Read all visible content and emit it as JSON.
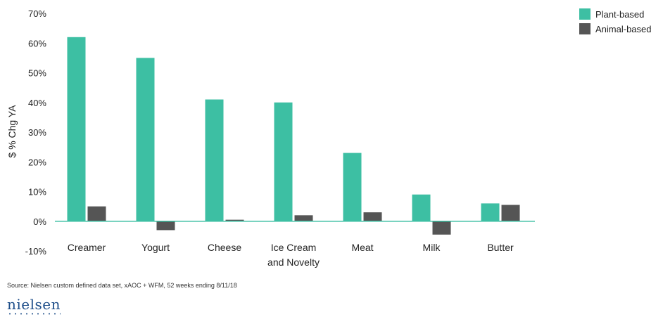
{
  "chart_data": {
    "type": "bar",
    "categories": [
      "Creamer",
      "Yogurt",
      "Cheese",
      "Ice Cream and Novelty",
      "Meat",
      "Milk",
      "Butter"
    ],
    "category_lines": [
      [
        "Creamer"
      ],
      [
        "Yogurt"
      ],
      [
        "Cheese"
      ],
      [
        "Ice Cream",
        "and Novelty"
      ],
      [
        "Meat"
      ],
      [
        "Milk"
      ],
      [
        "Butter"
      ]
    ],
    "series": [
      {
        "name": "Plant-based",
        "color": "#3dbfa3",
        "values": [
          62,
          55,
          41,
          40,
          23,
          9,
          6
        ]
      },
      {
        "name": "Animal-based",
        "color": "#555555",
        "values": [
          5,
          -3,
          0.5,
          2,
          3,
          -4.5,
          5.5
        ]
      }
    ],
    "ylabel": "$ % Chg YA",
    "ylim": [
      -10,
      70
    ],
    "yticks": [
      -10,
      0,
      10,
      20,
      30,
      40,
      50,
      60,
      70
    ],
    "ytick_labels": [
      "-10%",
      "0%",
      "10%",
      "20%",
      "30%",
      "40%",
      "50%",
      "60%",
      "70%"
    ],
    "grid": false,
    "legend": "top-right",
    "baseline_color": "#3dbfa3"
  },
  "footer": {
    "source": "Source: Nielsen custom defined data set, xAOC + WFM, 52 weeks ending 8/11/18",
    "logo_text": "nielsen"
  }
}
